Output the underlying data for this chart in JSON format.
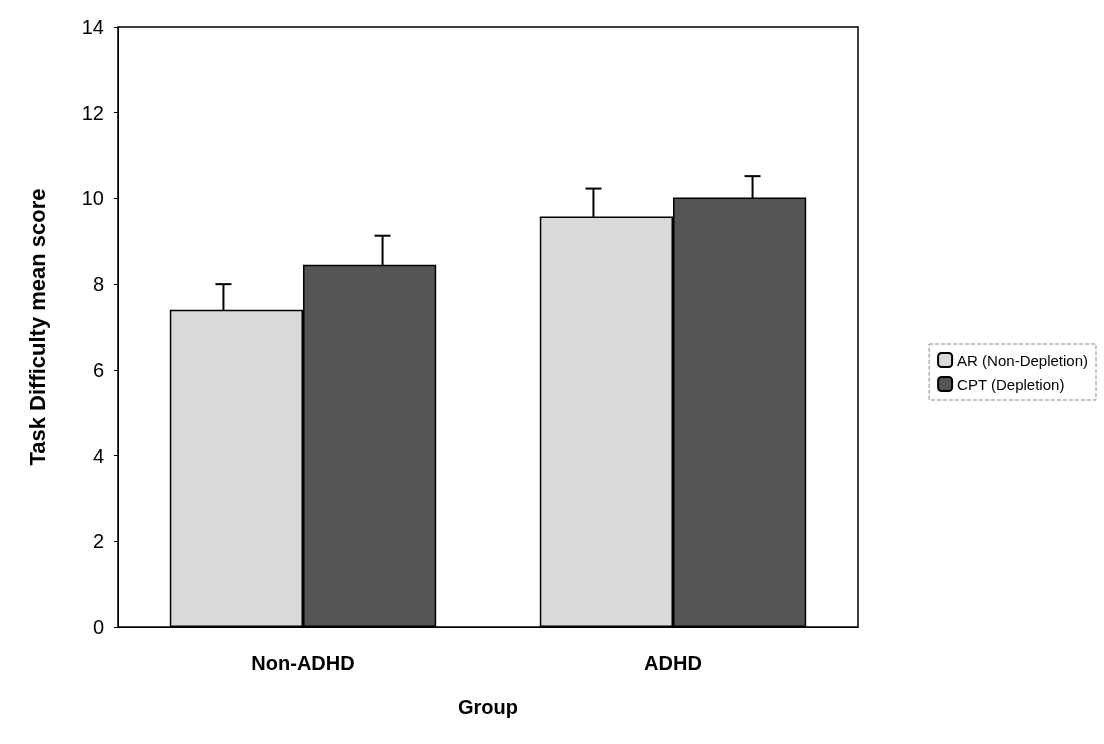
{
  "chart_data": {
    "type": "bar",
    "xlabel": "Group",
    "ylabel": "Task Difficulty mean score",
    "categories": [
      "Non-ADHD",
      "ADHD"
    ],
    "series": [
      {
        "name": "AR (Non-Depletion)",
        "color": "#d9d9d9",
        "values": [
          7.4,
          9.58
        ],
        "errors": [
          0.6,
          0.65
        ]
      },
      {
        "name": "CPT (Depletion)",
        "color": "#555555",
        "values": [
          8.45,
          10.02
        ],
        "errors": [
          0.68,
          0.5
        ]
      }
    ],
    "ylim": [
      0,
      14
    ],
    "yticks": [
      0,
      2,
      4,
      6,
      8,
      10,
      12,
      14
    ],
    "grid": false,
    "legend": "right"
  }
}
